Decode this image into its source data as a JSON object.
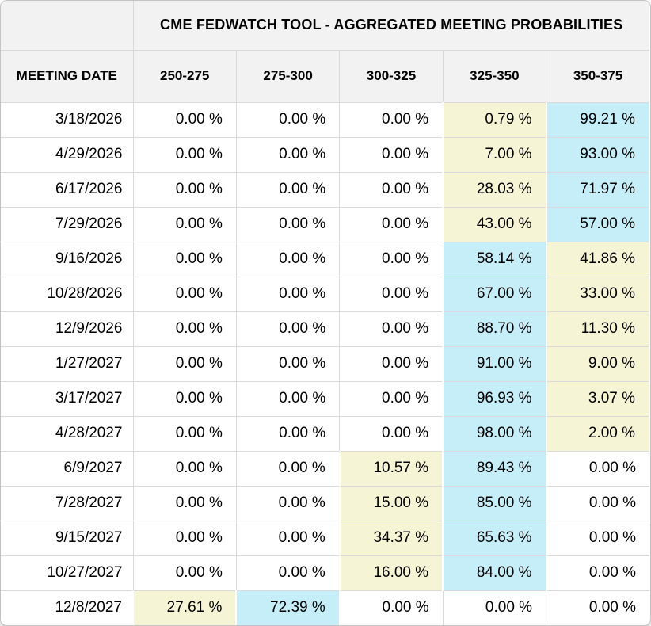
{
  "title": "CME FEDWATCH TOOL - AGGREGATED MEETING PROBABILITIES",
  "colors": {
    "highlight_yellow": "#F5F5D5",
    "highlight_cyan": "#C5EEF8",
    "header_background": "#F2F2F2",
    "grid_border": "#D9D9D9"
  },
  "table": {
    "date_column_header": "MEETING DATE",
    "rate_columns": [
      "250-275",
      "275-300",
      "300-325",
      "325-350",
      "350-375"
    ],
    "rows": [
      {
        "date": "3/18/2026",
        "cells": [
          {
            "value": "0.00 %",
            "highlight": "none"
          },
          {
            "value": "0.00 %",
            "highlight": "none"
          },
          {
            "value": "0.00 %",
            "highlight": "none"
          },
          {
            "value": "0.79 %",
            "highlight": "yellow"
          },
          {
            "value": "99.21 %",
            "highlight": "cyan"
          }
        ]
      },
      {
        "date": "4/29/2026",
        "cells": [
          {
            "value": "0.00 %",
            "highlight": "none"
          },
          {
            "value": "0.00 %",
            "highlight": "none"
          },
          {
            "value": "0.00 %",
            "highlight": "none"
          },
          {
            "value": "7.00 %",
            "highlight": "yellow"
          },
          {
            "value": "93.00 %",
            "highlight": "cyan"
          }
        ]
      },
      {
        "date": "6/17/2026",
        "cells": [
          {
            "value": "0.00 %",
            "highlight": "none"
          },
          {
            "value": "0.00 %",
            "highlight": "none"
          },
          {
            "value": "0.00 %",
            "highlight": "none"
          },
          {
            "value": "28.03 %",
            "highlight": "yellow"
          },
          {
            "value": "71.97 %",
            "highlight": "cyan"
          }
        ]
      },
      {
        "date": "7/29/2026",
        "cells": [
          {
            "value": "0.00 %",
            "highlight": "none"
          },
          {
            "value": "0.00 %",
            "highlight": "none"
          },
          {
            "value": "0.00 %",
            "highlight": "none"
          },
          {
            "value": "43.00 %",
            "highlight": "yellow"
          },
          {
            "value": "57.00 %",
            "highlight": "cyan"
          }
        ]
      },
      {
        "date": "9/16/2026",
        "cells": [
          {
            "value": "0.00 %",
            "highlight": "none"
          },
          {
            "value": "0.00 %",
            "highlight": "none"
          },
          {
            "value": "0.00 %",
            "highlight": "none"
          },
          {
            "value": "58.14 %",
            "highlight": "cyan"
          },
          {
            "value": "41.86 %",
            "highlight": "yellow"
          }
        ]
      },
      {
        "date": "10/28/2026",
        "cells": [
          {
            "value": "0.00 %",
            "highlight": "none"
          },
          {
            "value": "0.00 %",
            "highlight": "none"
          },
          {
            "value": "0.00 %",
            "highlight": "none"
          },
          {
            "value": "67.00 %",
            "highlight": "cyan"
          },
          {
            "value": "33.00 %",
            "highlight": "yellow"
          }
        ]
      },
      {
        "date": "12/9/2026",
        "cells": [
          {
            "value": "0.00 %",
            "highlight": "none"
          },
          {
            "value": "0.00 %",
            "highlight": "none"
          },
          {
            "value": "0.00 %",
            "highlight": "none"
          },
          {
            "value": "88.70 %",
            "highlight": "cyan"
          },
          {
            "value": "11.30 %",
            "highlight": "yellow"
          }
        ]
      },
      {
        "date": "1/27/2027",
        "cells": [
          {
            "value": "0.00 %",
            "highlight": "none"
          },
          {
            "value": "0.00 %",
            "highlight": "none"
          },
          {
            "value": "0.00 %",
            "highlight": "none"
          },
          {
            "value": "91.00 %",
            "highlight": "cyan"
          },
          {
            "value": "9.00 %",
            "highlight": "yellow"
          }
        ]
      },
      {
        "date": "3/17/2027",
        "cells": [
          {
            "value": "0.00 %",
            "highlight": "none"
          },
          {
            "value": "0.00 %",
            "highlight": "none"
          },
          {
            "value": "0.00 %",
            "highlight": "none"
          },
          {
            "value": "96.93 %",
            "highlight": "cyan"
          },
          {
            "value": "3.07 %",
            "highlight": "yellow"
          }
        ]
      },
      {
        "date": "4/28/2027",
        "cells": [
          {
            "value": "0.00 %",
            "highlight": "none"
          },
          {
            "value": "0.00 %",
            "highlight": "none"
          },
          {
            "value": "0.00 %",
            "highlight": "none"
          },
          {
            "value": "98.00 %",
            "highlight": "cyan"
          },
          {
            "value": "2.00 %",
            "highlight": "yellow"
          }
        ]
      },
      {
        "date": "6/9/2027",
        "cells": [
          {
            "value": "0.00 %",
            "highlight": "none"
          },
          {
            "value": "0.00 %",
            "highlight": "none"
          },
          {
            "value": "10.57 %",
            "highlight": "yellow"
          },
          {
            "value": "89.43 %",
            "highlight": "cyan"
          },
          {
            "value": "0.00 %",
            "highlight": "none"
          }
        ]
      },
      {
        "date": "7/28/2027",
        "cells": [
          {
            "value": "0.00 %",
            "highlight": "none"
          },
          {
            "value": "0.00 %",
            "highlight": "none"
          },
          {
            "value": "15.00 %",
            "highlight": "yellow"
          },
          {
            "value": "85.00 %",
            "highlight": "cyan"
          },
          {
            "value": "0.00 %",
            "highlight": "none"
          }
        ]
      },
      {
        "date": "9/15/2027",
        "cells": [
          {
            "value": "0.00 %",
            "highlight": "none"
          },
          {
            "value": "0.00 %",
            "highlight": "none"
          },
          {
            "value": "34.37 %",
            "highlight": "yellow"
          },
          {
            "value": "65.63 %",
            "highlight": "cyan"
          },
          {
            "value": "0.00 %",
            "highlight": "none"
          }
        ]
      },
      {
        "date": "10/27/2027",
        "cells": [
          {
            "value": "0.00 %",
            "highlight": "none"
          },
          {
            "value": "0.00 %",
            "highlight": "none"
          },
          {
            "value": "16.00 %",
            "highlight": "yellow"
          },
          {
            "value": "84.00 %",
            "highlight": "cyan"
          },
          {
            "value": "0.00 %",
            "highlight": "none"
          }
        ]
      },
      {
        "date": "12/8/2027",
        "cells": [
          {
            "value": "27.61 %",
            "highlight": "yellow"
          },
          {
            "value": "72.39 %",
            "highlight": "cyan"
          },
          {
            "value": "0.00 %",
            "highlight": "none"
          },
          {
            "value": "0.00 %",
            "highlight": "none"
          },
          {
            "value": "0.00 %",
            "highlight": "none"
          }
        ]
      }
    ]
  },
  "chart_data": {
    "type": "table",
    "title": "CME FEDWATCH TOOL - AGGREGATED MEETING PROBABILITIES",
    "row_label": "MEETING DATE",
    "columns": [
      "250-275",
      "275-300",
      "300-325",
      "325-350",
      "350-375"
    ],
    "units": "percent",
    "rows": [
      {
        "meeting_date": "3/18/2026",
        "values": [
          0.0,
          0.0,
          0.0,
          0.79,
          99.21
        ]
      },
      {
        "meeting_date": "4/29/2026",
        "values": [
          0.0,
          0.0,
          0.0,
          7.0,
          93.0
        ]
      },
      {
        "meeting_date": "6/17/2026",
        "values": [
          0.0,
          0.0,
          0.0,
          28.03,
          71.97
        ]
      },
      {
        "meeting_date": "7/29/2026",
        "values": [
          0.0,
          0.0,
          0.0,
          43.0,
          57.0
        ]
      },
      {
        "meeting_date": "9/16/2026",
        "values": [
          0.0,
          0.0,
          0.0,
          58.14,
          41.86
        ]
      },
      {
        "meeting_date": "10/28/2026",
        "values": [
          0.0,
          0.0,
          0.0,
          67.0,
          33.0
        ]
      },
      {
        "meeting_date": "12/9/2026",
        "values": [
          0.0,
          0.0,
          0.0,
          88.7,
          11.3
        ]
      },
      {
        "meeting_date": "1/27/2027",
        "values": [
          0.0,
          0.0,
          0.0,
          91.0,
          9.0
        ]
      },
      {
        "meeting_date": "3/17/2027",
        "values": [
          0.0,
          0.0,
          0.0,
          96.93,
          3.07
        ]
      },
      {
        "meeting_date": "4/28/2027",
        "values": [
          0.0,
          0.0,
          0.0,
          98.0,
          2.0
        ]
      },
      {
        "meeting_date": "6/9/2027",
        "values": [
          0.0,
          0.0,
          10.57,
          89.43,
          0.0
        ]
      },
      {
        "meeting_date": "7/28/2027",
        "values": [
          0.0,
          0.0,
          15.0,
          85.0,
          0.0
        ]
      },
      {
        "meeting_date": "9/15/2027",
        "values": [
          0.0,
          0.0,
          34.37,
          65.63,
          0.0
        ]
      },
      {
        "meeting_date": "10/27/2027",
        "values": [
          0.0,
          0.0,
          16.0,
          84.0,
          0.0
        ]
      },
      {
        "meeting_date": "12/8/2027",
        "values": [
          27.61,
          72.39,
          0.0,
          0.0,
          0.0
        ]
      }
    ]
  }
}
